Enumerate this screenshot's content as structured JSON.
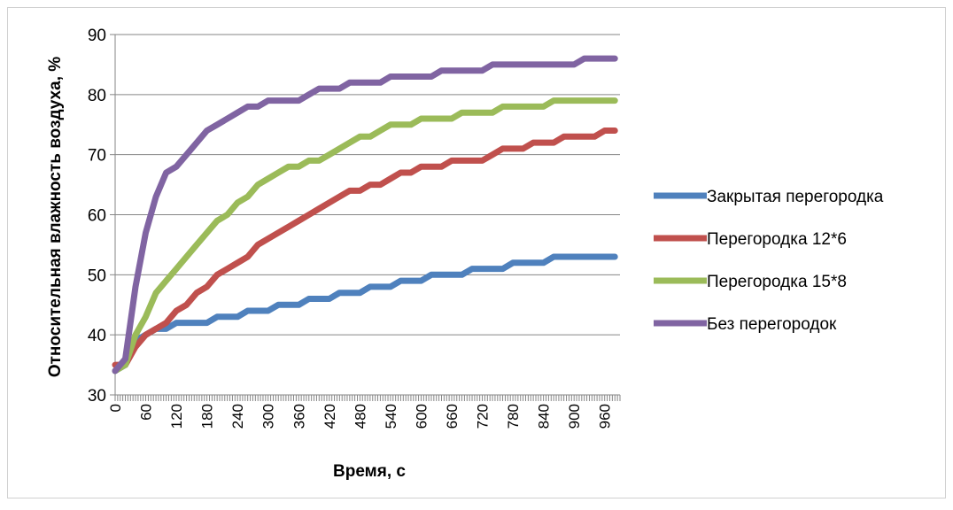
{
  "chart_data": {
    "type": "line",
    "xlabel": "Время, с",
    "ylabel": "Относительная влажность воздуха, %",
    "ylim": [
      30,
      90
    ],
    "yticks": [
      30,
      40,
      50,
      60,
      70,
      80,
      90
    ],
    "xlim": [
      0,
      990
    ],
    "xticks": [
      0,
      60,
      120,
      180,
      240,
      300,
      360,
      420,
      480,
      540,
      600,
      660,
      720,
      780,
      840,
      900,
      960
    ],
    "grid": "horizontal",
    "legend": "right",
    "series": [
      {
        "name": "Закрытая перегородка",
        "color": "#4f81bd",
        "points": [
          [
            0,
            34
          ],
          [
            20,
            35
          ],
          [
            40,
            39
          ],
          [
            60,
            40
          ],
          [
            80,
            41
          ],
          [
            100,
            41
          ],
          [
            120,
            42
          ],
          [
            180,
            42
          ],
          [
            200,
            43
          ],
          [
            240,
            43
          ],
          [
            260,
            44
          ],
          [
            300,
            44
          ],
          [
            320,
            45
          ],
          [
            360,
            45
          ],
          [
            380,
            46
          ],
          [
            420,
            46
          ],
          [
            440,
            47
          ],
          [
            480,
            47
          ],
          [
            500,
            48
          ],
          [
            540,
            48
          ],
          [
            560,
            49
          ],
          [
            600,
            49
          ],
          [
            620,
            50
          ],
          [
            680,
            50
          ],
          [
            700,
            51
          ],
          [
            760,
            51
          ],
          [
            780,
            52
          ],
          [
            840,
            52
          ],
          [
            860,
            53
          ],
          [
            980,
            53
          ]
        ]
      },
      {
        "name": "Перегородка 12*6",
        "color": "#c0504d",
        "points": [
          [
            0,
            35
          ],
          [
            20,
            35
          ],
          [
            40,
            38
          ],
          [
            60,
            40
          ],
          [
            80,
            41
          ],
          [
            100,
            42
          ],
          [
            120,
            44
          ],
          [
            140,
            45
          ],
          [
            160,
            47
          ],
          [
            180,
            48
          ],
          [
            200,
            50
          ],
          [
            220,
            51
          ],
          [
            240,
            52
          ],
          [
            260,
            53
          ],
          [
            280,
            55
          ],
          [
            300,
            56
          ],
          [
            320,
            57
          ],
          [
            340,
            58
          ],
          [
            360,
            59
          ],
          [
            380,
            60
          ],
          [
            400,
            61
          ],
          [
            420,
            62
          ],
          [
            440,
            63
          ],
          [
            460,
            64
          ],
          [
            480,
            64
          ],
          [
            500,
            65
          ],
          [
            520,
            65
          ],
          [
            540,
            66
          ],
          [
            560,
            67
          ],
          [
            580,
            67
          ],
          [
            600,
            68
          ],
          [
            640,
            68
          ],
          [
            660,
            69
          ],
          [
            720,
            69
          ],
          [
            740,
            70
          ],
          [
            760,
            71
          ],
          [
            800,
            71
          ],
          [
            820,
            72
          ],
          [
            860,
            72
          ],
          [
            880,
            73
          ],
          [
            940,
            73
          ],
          [
            960,
            74
          ],
          [
            980,
            74
          ]
        ]
      },
      {
        "name": "Перегородка 15*8",
        "color": "#9bbb59",
        "points": [
          [
            0,
            34
          ],
          [
            20,
            35
          ],
          [
            40,
            40
          ],
          [
            60,
            43
          ],
          [
            80,
            47
          ],
          [
            100,
            49
          ],
          [
            120,
            51
          ],
          [
            140,
            53
          ],
          [
            160,
            55
          ],
          [
            180,
            57
          ],
          [
            200,
            59
          ],
          [
            220,
            60
          ],
          [
            240,
            62
          ],
          [
            260,
            63
          ],
          [
            280,
            65
          ],
          [
            300,
            66
          ],
          [
            320,
            67
          ],
          [
            340,
            68
          ],
          [
            360,
            68
          ],
          [
            380,
            69
          ],
          [
            400,
            69
          ],
          [
            420,
            70
          ],
          [
            440,
            71
          ],
          [
            460,
            72
          ],
          [
            480,
            73
          ],
          [
            500,
            73
          ],
          [
            520,
            74
          ],
          [
            540,
            75
          ],
          [
            580,
            75
          ],
          [
            600,
            76
          ],
          [
            660,
            76
          ],
          [
            680,
            77
          ],
          [
            740,
            77
          ],
          [
            760,
            78
          ],
          [
            840,
            78
          ],
          [
            860,
            79
          ],
          [
            980,
            79
          ]
        ]
      },
      {
        "name": "Без перегородок",
        "color": "#8064a2",
        "points": [
          [
            0,
            34
          ],
          [
            20,
            36
          ],
          [
            40,
            48
          ],
          [
            60,
            57
          ],
          [
            80,
            63
          ],
          [
            100,
            67
          ],
          [
            120,
            68
          ],
          [
            140,
            70
          ],
          [
            160,
            72
          ],
          [
            180,
            74
          ],
          [
            200,
            75
          ],
          [
            220,
            76
          ],
          [
            240,
            77
          ],
          [
            260,
            78
          ],
          [
            280,
            78
          ],
          [
            300,
            79
          ],
          [
            360,
            79
          ],
          [
            380,
            80
          ],
          [
            400,
            81
          ],
          [
            440,
            81
          ],
          [
            460,
            82
          ],
          [
            520,
            82
          ],
          [
            540,
            83
          ],
          [
            620,
            83
          ],
          [
            640,
            84
          ],
          [
            720,
            84
          ],
          [
            740,
            85
          ],
          [
            900,
            85
          ],
          [
            920,
            86
          ],
          [
            980,
            86
          ]
        ]
      }
    ]
  }
}
